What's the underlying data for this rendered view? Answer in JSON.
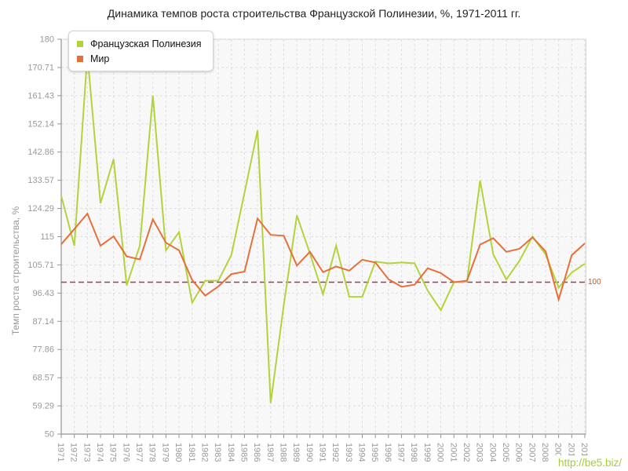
{
  "title": "Динамика темпов роста строительства Французской Полинезии, %, 1971-2011 гг.",
  "y_axis_title": "Темп роста строительства, %",
  "watermark": "http://be5.biz/",
  "ref_line": {
    "value": 100,
    "label": "100"
  },
  "legend": [
    {
      "label": "Французская Полинезия"
    },
    {
      "label": "Мир"
    }
  ],
  "colors": {
    "series_french_polynesia": "#b3d33c",
    "series_world": "#e5703a",
    "ref_line": "#9e3e51",
    "ref_label": "#c15b25",
    "grid": "#dedede",
    "axis": "#949494",
    "frame": "#cccccc",
    "plot_bg": "#f8f8f8",
    "tick_text": "#999999"
  },
  "chart_data": {
    "type": "line",
    "title": "Динамика темпов роста строительства Французской Полинезии, %, 1971-2011 гг.",
    "ylabel": "Темп роста строительства, %",
    "ylim": [
      50,
      180
    ],
    "grid": true,
    "legend_position": "top-left",
    "reference_line": 100,
    "y_ticks": [
      180,
      170.71,
      161.43,
      152.14,
      142.86,
      133.57,
      124.29,
      115,
      105.71,
      96.43,
      87.14,
      77.86,
      68.57,
      59.29,
      50
    ],
    "x": [
      1971,
      1972,
      1973,
      1974,
      1975,
      1976,
      1977,
      1978,
      1979,
      1980,
      1981,
      1982,
      1983,
      1984,
      1985,
      1986,
      1987,
      1988,
      1989,
      1990,
      1991,
      1992,
      1993,
      1994,
      1995,
      1996,
      1997,
      1998,
      1999,
      2000,
      2001,
      2002,
      2003,
      2004,
      2005,
      2006,
      2007,
      2008,
      2009,
      2010,
      2011
    ],
    "series": [
      {
        "name": "Французская Полинезия",
        "values": [
          128.5,
          112.0,
          175.0,
          126.0,
          140.5,
          99.0,
          112.0,
          161.5,
          110.5,
          116.5,
          93.3,
          100.5,
          100.5,
          109.0,
          129.5,
          150.0,
          60.2,
          92.5,
          122.0,
          109.5,
          96.0,
          112.0,
          95.2,
          95.2,
          106.8,
          106.2,
          106.5,
          106.2,
          97.2,
          90.8,
          100.0,
          100.2,
          133.5,
          109.2,
          100.9,
          107.0,
          115.0,
          109.2,
          98.2,
          103.2,
          106.1
        ]
      },
      {
        "name": "Мир",
        "values": [
          112.5,
          117.5,
          122.6,
          112.0,
          115.1,
          108.5,
          107.5,
          120.7,
          113.0,
          110.5,
          100.7,
          95.6,
          98.6,
          102.7,
          103.5,
          121.0,
          115.6,
          115.3,
          105.5,
          110.0,
          103.3,
          105.2,
          103.8,
          107.4,
          106.5,
          101.0,
          98.5,
          99.2,
          104.6,
          103.0,
          100.0,
          100.5,
          112.4,
          114.5,
          110.0,
          111.0,
          114.8,
          110.2,
          94.3,
          108.9,
          112.8
        ]
      }
    ]
  }
}
